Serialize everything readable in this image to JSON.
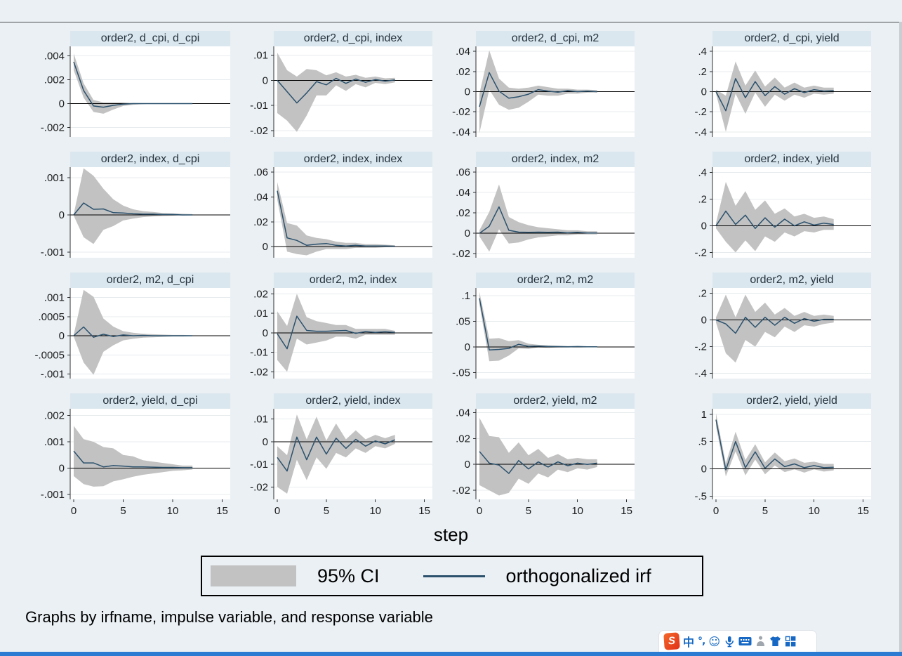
{
  "window": {
    "background": "#eaf0f4",
    "taskbar_color": "#2b7bd3"
  },
  "legend": {
    "ci_label": "95% CI",
    "irf_label": "orthogonalized irf",
    "ci_color": "#c2c2c2",
    "line_color": "#2b516d"
  },
  "ime_toolbar": {
    "icons": [
      {
        "name": "sogou-logo",
        "label": "S"
      },
      {
        "name": "chinese-mode",
        "glyph": "中"
      },
      {
        "name": "punctuation",
        "glyph": "°,"
      },
      {
        "name": "emoji",
        "glyph": "☺"
      },
      {
        "name": "microphone"
      },
      {
        "name": "soft-keyboard"
      },
      {
        "name": "handwriting"
      },
      {
        "name": "skin"
      },
      {
        "name": "toolbox"
      }
    ]
  },
  "chart_data": {
    "type": "area",
    "xlabel": "step",
    "note": "Graphs by irfname, impulse variable, and response variable",
    "legend": [
      "95% CI",
      "orthogonalized irf"
    ],
    "legend_position": "bottom",
    "grid": true,
    "band_color": "#c2c2c2",
    "line_color": "#2b516d",
    "plot_bg": "#ffffff",
    "x": [
      0,
      1,
      2,
      3,
      4,
      5,
      6,
      7,
      8,
      9,
      10,
      11,
      12
    ],
    "xticks": [
      0,
      5,
      10,
      15
    ],
    "xlim": [
      0,
      15.6
    ],
    "panels": [
      {
        "title": "order2, d_cpi, d_cpi",
        "ylim": [
          -0.0028,
          0.0048
        ],
        "yticks": [
          0.004,
          0.002,
          0,
          -0.002
        ],
        "ytick_labels": [
          ".004",
          ".002",
          "0",
          "-.002"
        ],
        "irf": [
          0.0035,
          0.0011,
          -0.0002,
          -0.0003,
          -0.00015,
          -5e-05,
          0,
          0,
          0,
          0,
          0,
          0,
          0
        ],
        "upper": [
          0.0042,
          0.0017,
          0.0003,
          0.0001,
          0.0001,
          0.0001,
          5e-05,
          3e-05,
          0,
          0,
          0,
          0,
          0
        ],
        "lower": [
          0.0028,
          0.0005,
          -0.0007,
          -0.00085,
          -0.0005,
          -0.0002,
          -0.0001,
          -5e-05,
          0,
          0,
          0,
          0,
          0
        ]
      },
      {
        "title": "order2, d_cpi, index",
        "ylim": [
          -0.0225,
          0.0135
        ],
        "yticks": [
          0.01,
          0,
          -0.01,
          -0.02
        ],
        "ytick_labels": [
          ".01",
          "0",
          "-.01",
          "-.02"
        ],
        "irf": [
          0,
          -0.0045,
          -0.009,
          -0.005,
          -0.0005,
          -0.0018,
          0.0008,
          -0.0012,
          0.0005,
          -0.0008,
          0.0003,
          -0.0003,
          0.0002
        ],
        "upper": [
          0.011,
          0.004,
          0.0015,
          0.0045,
          0.004,
          0.002,
          0.0032,
          0.0015,
          0.0022,
          0.001,
          0.0015,
          0.0008,
          0.001
        ],
        "lower": [
          -0.013,
          -0.016,
          -0.0205,
          -0.014,
          -0.006,
          -0.006,
          -0.002,
          -0.0042,
          -0.0015,
          -0.0028,
          -0.001,
          -0.0015,
          -0.0008
        ]
      },
      {
        "title": "order2, d_cpi, m2",
        "ylim": [
          -0.045,
          0.045
        ],
        "yticks": [
          0.04,
          0.02,
          0,
          -0.02,
          -0.04
        ],
        "ytick_labels": [
          ".04",
          ".02",
          "0",
          "-.02",
          "-.04"
        ],
        "irf": [
          -0.015,
          0.019,
          0.0005,
          -0.0065,
          -0.005,
          -0.0025,
          0.002,
          0.0005,
          -0.0005,
          0.001,
          0,
          0.0005,
          0
        ],
        "upper": [
          -0.002,
          0.041,
          0.013,
          0.004,
          0.003,
          0.004,
          0.006,
          0.0045,
          0.003,
          0.003,
          0.002,
          0.002,
          0.0015
        ],
        "lower": [
          -0.041,
          0.002,
          -0.013,
          -0.018,
          -0.016,
          -0.01,
          -0.003,
          -0.004,
          -0.004,
          -0.002,
          -0.002,
          -0.001,
          -0.001
        ]
      },
      {
        "title": "order2, d_cpi, yield",
        "ylim": [
          -0.45,
          0.45
        ],
        "yticks": [
          0.4,
          0.2,
          0,
          -0.2,
          -0.4
        ],
        "ytick_labels": [
          ".4",
          ".2",
          "0",
          "-.2",
          "-.4"
        ],
        "irf": [
          0,
          -0.19,
          0.13,
          -0.06,
          0.1,
          -0.04,
          0.05,
          -0.025,
          0.03,
          -0.01,
          0.02,
          0.005,
          0.01
        ],
        "upper": [
          0.02,
          -0.04,
          0.3,
          0.06,
          0.21,
          0.05,
          0.14,
          0.04,
          0.09,
          0.04,
          0.06,
          0.04,
          0.04
        ],
        "lower": [
          -0.02,
          -0.4,
          -0.02,
          -0.22,
          -0.01,
          -0.15,
          -0.03,
          -0.09,
          -0.03,
          -0.06,
          -0.02,
          -0.03,
          -0.02
        ]
      },
      {
        "title": "order2, index, d_cpi",
        "ylim": [
          -0.00115,
          0.00128
        ],
        "yticks": [
          0.001,
          0,
          -0.001
        ],
        "ytick_labels": [
          ".001",
          "0",
          "-.001"
        ],
        "irf": [
          0,
          0.00032,
          0.00015,
          0.00016,
          6e-05,
          5e-05,
          3e-05,
          2e-05,
          2e-05,
          1e-05,
          1e-05,
          0,
          0
        ],
        "upper": [
          2e-05,
          0.00125,
          0.00105,
          0.0007,
          0.00042,
          0.00025,
          0.00015,
          0.0001,
          8e-05,
          5e-05,
          4e-05,
          3e-05,
          2e-05
        ],
        "lower": [
          -2e-05,
          -0.0006,
          -0.00078,
          -0.0004,
          -0.0003,
          -0.00015,
          -0.0001,
          -6e-05,
          -4e-05,
          -3e-05,
          -2e-05,
          -2e-05,
          -1e-05
        ]
      },
      {
        "title": "order2, index, index",
        "ylim": [
          -0.009,
          0.064
        ],
        "yticks": [
          0.06,
          0.04,
          0.02,
          0
        ],
        "ytick_labels": [
          ".06",
          ".04",
          ".02",
          "0"
        ],
        "irf": [
          0.045,
          0.007,
          0.005,
          0.001,
          0.002,
          0.0025,
          0.001,
          0.0005,
          0.001,
          0.0005,
          0.0005,
          0.0005,
          0.0003
        ],
        "upper": [
          0.052,
          0.019,
          0.017,
          0.009,
          0.007,
          0.006,
          0.004,
          0.003,
          0.003,
          0.002,
          0.002,
          0.0015,
          0.001
        ],
        "lower": [
          0.038,
          -0.004,
          -0.006,
          -0.007,
          -0.004,
          -0.002,
          -0.002,
          -0.002,
          -0.001,
          -0.001,
          -0.001,
          -0.0005,
          -0.0005
        ]
      },
      {
        "title": "order2, index, m2",
        "ylim": [
          -0.024,
          0.065
        ],
        "yticks": [
          0.06,
          0.04,
          0.02,
          0,
          -0.02
        ],
        "ytick_labels": [
          ".06",
          ".04",
          ".02",
          "0",
          "-.02"
        ],
        "irf": [
          0,
          0.007,
          0.026,
          0.003,
          0.0012,
          0.001,
          0.0012,
          0.001,
          0.0012,
          0.0005,
          0.001,
          0.0003,
          0.0003
        ],
        "upper": [
          0.003,
          0.021,
          0.048,
          0.016,
          0.011,
          0.008,
          0.006,
          0.005,
          0.004,
          0.003,
          0.003,
          0.002,
          0.002
        ],
        "lower": [
          -0.003,
          -0.018,
          0.004,
          -0.01,
          -0.009,
          -0.006,
          -0.004,
          -0.003,
          -0.002,
          -0.002,
          -0.001,
          -0.001,
          -0.001
        ]
      },
      {
        "title": "order2, index, yield",
        "ylim": [
          -0.24,
          0.44
        ],
        "yticks": [
          0.4,
          0.2,
          0,
          -0.2
        ],
        "ytick_labels": [
          ".4",
          ".2",
          "0",
          "-.2"
        ],
        "irf": [
          0,
          0.11,
          0.01,
          0.08,
          -0.02,
          0.06,
          -0.01,
          0.05,
          0,
          0.03,
          0.005,
          0.02,
          0.01
        ],
        "upper": [
          0.02,
          0.33,
          0.15,
          0.26,
          0.12,
          0.19,
          0.09,
          0.13,
          0.07,
          0.09,
          0.06,
          0.07,
          0.05
        ],
        "lower": [
          -0.02,
          -0.12,
          -0.2,
          -0.11,
          -0.19,
          -0.08,
          -0.12,
          -0.05,
          -0.08,
          -0.04,
          -0.05,
          -0.03,
          -0.03
        ]
      },
      {
        "title": "order2, m2, d_cpi",
        "ylim": [
          -0.00112,
          0.00125
        ],
        "yticks": [
          0.001,
          0.0005,
          0,
          -0.0005,
          -0.001
        ],
        "ytick_labels": [
          ".001",
          ".0005",
          "0",
          "-.0005",
          "-.001"
        ],
        "irf": [
          0,
          0.00023,
          -4e-05,
          4e-05,
          -2e-05,
          2e-05,
          0,
          1e-05,
          0,
          0,
          0,
          0,
          0
        ],
        "upper": [
          2e-05,
          0.0012,
          0.00102,
          0.00045,
          0.00024,
          0.00012,
          8e-05,
          5e-05,
          4e-05,
          3e-05,
          2e-05,
          2e-05,
          1e-05
        ],
        "lower": [
          -2e-05,
          -0.0007,
          -0.00102,
          -0.00042,
          -0.00025,
          -0.00012,
          -8e-05,
          -5e-05,
          -4e-05,
          -3e-05,
          -2e-05,
          -2e-05,
          -1e-05
        ]
      },
      {
        "title": "order2, m2, index",
        "ylim": [
          -0.0235,
          0.023
        ],
        "yticks": [
          0.02,
          0.01,
          0,
          -0.01,
          -0.02
        ],
        "ytick_labels": [
          ".02",
          ".01",
          "0",
          "-.01",
          "-.02"
        ],
        "irf": [
          -0.0005,
          -0.0082,
          0.0085,
          0.0012,
          0.0008,
          0.0008,
          0.001,
          0.0012,
          -0.0003,
          0.0006,
          0.0002,
          0.0005,
          0.0002
        ],
        "upper": [
          0.011,
          0.0035,
          0.02,
          0.008,
          0.006,
          0.005,
          0.004,
          0.004,
          0.002,
          0.002,
          0.002,
          0.002,
          0.001
        ],
        "lower": [
          -0.014,
          -0.02,
          -0.003,
          -0.006,
          -0.005,
          -0.004,
          -0.002,
          -0.002,
          -0.003,
          -0.001,
          -0.001,
          -0.001,
          -0.001
        ]
      },
      {
        "title": "order2, m2, m2",
        "ylim": [
          -0.062,
          0.115
        ],
        "yticks": [
          0.1,
          0.05,
          0,
          -0.05
        ],
        "ytick_labels": [
          ".1",
          ".05",
          "0",
          "-.05"
        ],
        "irf": [
          0.095,
          -0.006,
          -0.005,
          -0.003,
          0.005,
          0.001,
          0.0015,
          0.0005,
          0.0005,
          0,
          0.0005,
          0,
          0
        ],
        "upper": [
          0.107,
          0.016,
          0.017,
          0.011,
          0.013,
          0.006,
          0.004,
          0.003,
          0.002,
          0.0015,
          0.001,
          0.001,
          0.001
        ],
        "lower": [
          0.083,
          -0.028,
          -0.027,
          -0.017,
          -0.003,
          -0.004,
          -0.001,
          -0.002,
          -0.001,
          -0.0015,
          0,
          -0.001,
          -0.001
        ]
      },
      {
        "title": "order2, m2, yield",
        "ylim": [
          -0.44,
          0.24
        ],
        "yticks": [
          0.2,
          0,
          -0.2,
          -0.4
        ],
        "ytick_labels": [
          ".2",
          "0",
          "-.2",
          "-.4"
        ],
        "irf": [
          0,
          -0.03,
          -0.1,
          0.02,
          -0.055,
          0.02,
          -0.04,
          0.02,
          -0.025,
          0.01,
          -0.01,
          0.005,
          0.005
        ],
        "upper": [
          0.02,
          0.19,
          0.02,
          0.19,
          0.06,
          0.13,
          0.04,
          0.09,
          0.03,
          0.06,
          0.03,
          0.04,
          0.03
        ],
        "lower": [
          -0.02,
          -0.25,
          -0.32,
          -0.15,
          -0.2,
          -0.09,
          -0.13,
          -0.05,
          -0.09,
          -0.04,
          -0.05,
          -0.03,
          -0.02
        ]
      },
      {
        "title": "order2, yield, d_cpi",
        "ylim": [
          -0.00118,
          0.00225
        ],
        "yticks": [
          0.002,
          0.001,
          0,
          -0.001
        ],
        "ytick_labels": [
          ".002",
          ".001",
          "0",
          "-.001"
        ],
        "irf": [
          0.00065,
          0.0002,
          0.0002,
          5e-05,
          0.0001,
          8e-05,
          5e-05,
          5e-05,
          4e-05,
          3e-05,
          3e-05,
          2e-05,
          2e-05
        ],
        "upper": [
          0.0016,
          0.0011,
          0.001,
          0.0008,
          0.00075,
          0.0005,
          0.00045,
          0.0003,
          0.00025,
          0.0002,
          0.00015,
          0.0001,
          0.0001
        ],
        "lower": [
          -0.0003,
          -0.0006,
          -0.0007,
          -0.00068,
          -0.0005,
          -0.00042,
          -0.00032,
          -0.00025,
          -0.0002,
          -0.00015,
          -0.0001,
          -8e-05,
          -5e-05
        ]
      },
      {
        "title": "order2, yield, index",
        "ylim": [
          -0.0255,
          0.0145
        ],
        "yticks": [
          0.01,
          0,
          -0.01,
          -0.02
        ],
        "ytick_labels": [
          ".01",
          "0",
          "-.01",
          "-.02"
        ],
        "irf": [
          -0.007,
          -0.013,
          0.002,
          -0.008,
          0.002,
          -0.0055,
          0.0015,
          -0.003,
          0.001,
          -0.002,
          0.0003,
          -0.001,
          0.0008
        ],
        "upper": [
          -0.002,
          -0.006,
          0.012,
          0.001,
          0.011,
          0.0005,
          0.008,
          0.001,
          0.005,
          0.001,
          0.003,
          0.0015,
          0.003
        ],
        "lower": [
          -0.02,
          -0.023,
          -0.008,
          -0.017,
          -0.007,
          -0.012,
          -0.005,
          -0.007,
          -0.003,
          -0.005,
          -0.002,
          -0.003,
          -0.001
        ]
      },
      {
        "title": "order2, yield, m2",
        "ylim": [
          -0.027,
          0.043
        ],
        "yticks": [
          0.04,
          0.02,
          0,
          -0.02
        ],
        "ytick_labels": [
          ".04",
          ".02",
          "0",
          "-.02"
        ],
        "irf": [
          0.01,
          0.001,
          -0.0005,
          -0.007,
          0.003,
          -0.0035,
          0.002,
          -0.002,
          0.002,
          -0.001,
          0.001,
          0,
          0.001
        ],
        "upper": [
          0.036,
          0.022,
          0.021,
          0.009,
          0.017,
          0.007,
          0.012,
          0.005,
          0.008,
          0.004,
          0.005,
          0.004,
          0.004
        ],
        "lower": [
          -0.016,
          -0.02,
          -0.024,
          -0.022,
          -0.011,
          -0.015,
          -0.007,
          -0.01,
          -0.004,
          -0.006,
          -0.003,
          -0.004,
          -0.002
        ]
      },
      {
        "title": "order2, yield, yield",
        "ylim": [
          -0.56,
          1.1
        ],
        "yticks": [
          1,
          0.5,
          0,
          -0.5
        ],
        "ytick_labels": [
          "1",
          ".5",
          "0",
          "-.5"
        ],
        "irf": [
          0.9,
          -0.02,
          0.5,
          0.02,
          0.31,
          0.01,
          0.18,
          0.04,
          0.09,
          0.02,
          0.06,
          0.02,
          0.03
        ],
        "upper": [
          1.02,
          0.1,
          0.68,
          0.16,
          0.45,
          0.12,
          0.3,
          0.14,
          0.19,
          0.11,
          0.13,
          0.09,
          0.09
        ],
        "lower": [
          0.78,
          -0.14,
          0.32,
          -0.12,
          0.17,
          -0.1,
          0.06,
          -0.06,
          -0.01,
          -0.07,
          -0.01,
          -0.05,
          -0.03
        ]
      }
    ]
  }
}
